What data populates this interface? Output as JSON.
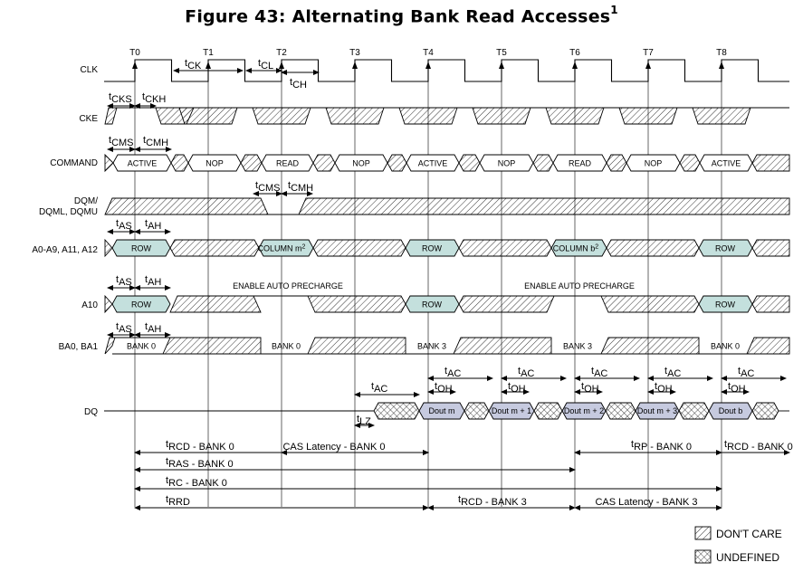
{
  "title": {
    "text": "Figure 43:  Alternating Bank Read Accesses",
    "footnote": "1"
  },
  "clock_labels": [
    "T0",
    "T1",
    "T2",
    "T3",
    "T4",
    "T5",
    "T6",
    "T7",
    "T8"
  ],
  "signals": {
    "clk": "CLK",
    "cke": "CKE",
    "command": "COMMAND",
    "dqm_line1": "DQM/",
    "dqm_line2": "DQML, DQMU",
    "addr": "A0-A9, A11, A12",
    "a10": "A10",
    "ba": "BA0, BA1",
    "dq": "DQ"
  },
  "timing_params": {
    "t": "t",
    "ck": "CK",
    "cl": "CL",
    "ch": "CH",
    "cks": "CKS",
    "ckh": "CKH",
    "cms": "CMS",
    "cmh": "CMH",
    "as": "AS",
    "ah": "AH",
    "ac": "AC",
    "oh": "OH",
    "lz": "LZ"
  },
  "commands": [
    "ACTIVE",
    "NOP",
    "READ",
    "NOP",
    "ACTIVE",
    "NOP",
    "READ",
    "NOP",
    "ACTIVE"
  ],
  "address": {
    "row": "ROW",
    "column_m": "COLUMN m",
    "column_b": "COLUMN b",
    "footnote": "2",
    "enable_auto_precharge": "ENABLE AUTO PRECHARGE"
  },
  "bank": {
    "bank0": "BANK 0",
    "bank3": "BANK 3"
  },
  "dq_outputs": [
    "Dout m",
    "Dout m + 1",
    "Dout m + 2",
    "Dout m + 3",
    "Dout b"
  ],
  "intervals": {
    "trcd_bank0": "RCD - BANK 0",
    "cas_latency_bank0": "CAS Latency - BANK 0",
    "trp_bank0": "RP - BANK 0",
    "trcd_bank0_b": "RCD - BANK 0",
    "tras_bank0": "RAS - BANK 0",
    "trc_bank0": "RC - BANK 0",
    "trrd": "RRD",
    "trcd_bank3": "RCD - BANK 3",
    "cas_latency_bank3": "CAS Latency - BANK 3"
  },
  "legend": {
    "dont_care": "DON'T CARE",
    "undefined": "UNDEFINED"
  },
  "colors": {
    "bus_fill": "#c4e0dd",
    "dq_fill": "#c6cadf",
    "line": "#000000"
  }
}
